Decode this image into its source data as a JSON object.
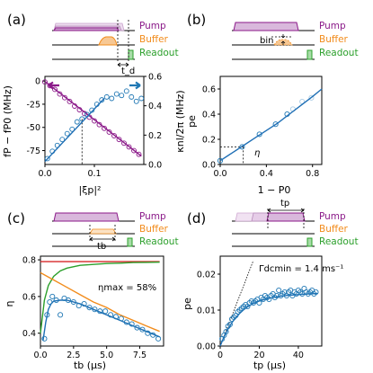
{
  "colors": {
    "pump": "#8b1a89",
    "pump_fill": "#d9b8dc",
    "buffer": "#f28c1c",
    "buffer_fill": "#f7c894",
    "readout": "#2ca02c",
    "readout_fill": "#a8dba8",
    "fit": "#1f6fb5",
    "data": "#1f77b4",
    "pale_data": "#a9cbe4",
    "red": "#d62728"
  },
  "legend": {
    "pump": "Pump",
    "buffer": "Buffer",
    "readout": "Readout"
  },
  "panels": {
    "a": {
      "label": "(a)",
      "seq_note": "t_d",
      "xlabel": "|ξp|²",
      "ylabel_left": "fP − fP0 (MHz)",
      "ylabel_right": "κnl/2π (MHz)"
    },
    "b": {
      "label": "(b)",
      "seq_note": "bin",
      "xlabel": "1 − P0",
      "ylabel": "pe",
      "annotation": "η"
    },
    "c": {
      "label": "(c)",
      "seq_note": "tb",
      "xlabel": "tb (μs)",
      "ylabel": "η",
      "annotation": "ηmax = 58%"
    },
    "d": {
      "label": "(d)",
      "seq_note": "tp",
      "xlabel": "tp (μs)",
      "ylabel": "pe",
      "annotation": "Γdcmin = 1.4 ms⁻¹"
    }
  },
  "chart_data": [
    {
      "panel": "a",
      "type": "scatter",
      "xlim": [
        0,
        0.2
      ],
      "xticks": [
        0.0,
        0.1
      ],
      "ylim_left": [
        -90,
        5
      ],
      "yticks_left": [
        -75,
        -50,
        -25,
        0
      ],
      "ylim_right": [
        0,
        0.6
      ],
      "yticks_right": [
        0.0,
        0.2,
        0.4,
        0.6
      ],
      "marker_x": 0.075,
      "series": [
        {
          "axis": "left",
          "style": "open-circle",
          "color": "pump",
          "x": [
            0.0,
            0.01,
            0.02,
            0.03,
            0.04,
            0.05,
            0.06,
            0.07,
            0.08,
            0.09,
            0.1,
            0.11,
            0.12,
            0.13,
            0.14,
            0.15,
            0.16,
            0.17,
            0.18,
            0.19
          ],
          "y": [
            -1,
            -5,
            -9,
            -14,
            -18,
            -22,
            -27,
            -31,
            -35,
            -39,
            -43,
            -47,
            -51,
            -55,
            -59,
            -63,
            -67,
            -71,
            -75,
            -79
          ]
        },
        {
          "axis": "left",
          "style": "line",
          "color": "pump",
          "x": [
            0.0,
            0.195
          ],
          "y": [
            -0.5,
            -81
          ]
        },
        {
          "axis": "right",
          "style": "open-circle",
          "color": "data",
          "x": [
            0.005,
            0.015,
            0.025,
            0.035,
            0.045,
            0.055,
            0.065,
            0.075,
            0.085,
            0.095,
            0.105,
            0.115,
            0.125,
            0.135,
            0.145,
            0.155,
            0.165,
            0.175,
            0.185,
            0.195
          ],
          "y": [
            0.04,
            0.09,
            0.13,
            0.17,
            0.21,
            0.24,
            0.29,
            0.31,
            0.34,
            0.37,
            0.41,
            0.44,
            0.46,
            0.45,
            0.48,
            0.47,
            0.5,
            0.46,
            0.43,
            0.45
          ]
        },
        {
          "axis": "right",
          "style": "line",
          "color": "fit",
          "x": [
            0.0,
            0.12
          ],
          "y": [
            0.02,
            0.45
          ]
        }
      ]
    },
    {
      "panel": "b",
      "type": "scatter",
      "xlim": [
        0,
        0.88
      ],
      "xticks": [
        0.0,
        0.4,
        0.8
      ],
      "ylim": [
        0,
        0.7
      ],
      "yticks": [
        0.0,
        0.2,
        0.4,
        0.6
      ],
      "marker": {
        "x": 0.2,
        "y": 0.14
      },
      "series": [
        {
          "style": "open-circle",
          "color": "data",
          "x": [
            0.0,
            0.19,
            0.34,
            0.48,
            0.58
          ],
          "y": [
            0.03,
            0.14,
            0.24,
            0.32,
            0.4
          ]
        },
        {
          "style": "open-circle",
          "color": "pale_data",
          "x": [
            0.63,
            0.71,
            0.79
          ],
          "y": [
            0.44,
            0.5,
            0.53
          ]
        },
        {
          "style": "line",
          "color": "fit",
          "x": [
            0.0,
            0.1,
            0.2,
            0.3,
            0.4,
            0.5,
            0.6,
            0.7,
            0.8,
            0.88
          ],
          "y": [
            0.03,
            0.09,
            0.15,
            0.21,
            0.27,
            0.33,
            0.4,
            0.47,
            0.54,
            0.6
          ]
        }
      ]
    },
    {
      "panel": "c",
      "type": "line",
      "xlim": [
        0,
        9.3
      ],
      "xticks": [
        0.0,
        2.5,
        5.0,
        7.5
      ],
      "ylim": [
        0.33,
        0.82
      ],
      "yticks": [
        0.4,
        0.6,
        0.8
      ],
      "series": [
        {
          "style": "line",
          "color": "red",
          "x": [
            0.0,
            9.0
          ],
          "y": [
            0.79,
            0.79
          ]
        },
        {
          "style": "line",
          "color": "readout",
          "x": [
            0.0,
            0.3,
            0.6,
            1.0,
            1.5,
            2.0,
            3.0,
            4.0,
            5.0,
            6.0,
            7.0,
            8.0,
            9.0
          ],
          "y": [
            0.4,
            0.58,
            0.66,
            0.71,
            0.74,
            0.755,
            0.77,
            0.775,
            0.78,
            0.782,
            0.785,
            0.786,
            0.787
          ]
        },
        {
          "style": "line",
          "color": "buffer",
          "x": [
            0.0,
            1.0,
            2.0,
            3.0,
            4.0,
            5.0,
            6.0,
            7.0,
            8.0,
            9.0
          ],
          "y": [
            0.73,
            0.69,
            0.65,
            0.61,
            0.57,
            0.54,
            0.5,
            0.47,
            0.44,
            0.41
          ]
        },
        {
          "style": "line",
          "color": "fit",
          "x": [
            0.2,
            0.4,
            0.6,
            0.8,
            1.0,
            1.5,
            2.0,
            3.0,
            4.0,
            5.0,
            6.0,
            7.0,
            8.0,
            9.0
          ],
          "y": [
            0.36,
            0.46,
            0.53,
            0.56,
            0.575,
            0.58,
            0.58,
            0.56,
            0.53,
            0.5,
            0.47,
            0.44,
            0.41,
            0.38
          ]
        },
        {
          "style": "open-circle",
          "color": "data",
          "x": [
            0.3,
            0.5,
            0.7,
            0.9,
            1.2,
            1.5,
            1.8,
            2.1,
            2.5,
            2.9,
            3.3,
            3.7,
            4.1,
            4.5,
            4.9,
            5.3,
            5.7,
            6.1,
            6.5,
            6.9,
            7.3,
            7.7,
            8.1,
            8.5,
            8.9
          ],
          "y": [
            0.37,
            0.5,
            0.57,
            0.6,
            0.58,
            0.5,
            0.59,
            0.58,
            0.57,
            0.55,
            0.56,
            0.54,
            0.53,
            0.52,
            0.52,
            0.5,
            0.49,
            0.48,
            0.46,
            0.45,
            0.43,
            0.42,
            0.4,
            0.39,
            0.37
          ]
        }
      ]
    },
    {
      "panel": "d",
      "type": "scatter",
      "xlim": [
        0,
        52
      ],
      "xticks": [
        0,
        20,
        40
      ],
      "ylim": [
        0,
        0.025
      ],
      "yticks": [
        0.0,
        0.01,
        0.02
      ],
      "series": [
        {
          "style": "dotted-line",
          "color": "black",
          "x": [
            0.0,
            17.0
          ],
          "y": [
            0.0,
            0.0238
          ]
        },
        {
          "style": "line",
          "color": "fit",
          "x": [
            0,
            2,
            4,
            6,
            8,
            10,
            12,
            14,
            16,
            18,
            20,
            25,
            30,
            35,
            40,
            45,
            50
          ],
          "y": [
            0.0,
            0.0026,
            0.0047,
            0.0065,
            0.0079,
            0.0091,
            0.0101,
            0.0109,
            0.0116,
            0.0121,
            0.0125,
            0.0133,
            0.0138,
            0.0141,
            0.0143,
            0.0145,
            0.0146
          ]
        },
        {
          "style": "open-circle",
          "color": "data",
          "x": [
            1,
            2,
            3,
            4,
            5,
            6,
            7,
            8,
            9,
            10,
            11,
            12,
            13,
            14,
            15,
            16,
            17,
            18,
            19,
            20,
            21,
            22,
            23,
            24,
            25,
            26,
            27,
            28,
            29,
            30,
            31,
            32,
            33,
            34,
            35,
            36,
            37,
            38,
            39,
            40,
            41,
            42,
            43,
            44,
            45,
            46,
            47,
            48,
            49
          ],
          "y": [
            0.002,
            0.003,
            0.004,
            0.0055,
            0.006,
            0.0075,
            0.008,
            0.0085,
            0.0095,
            0.01,
            0.0105,
            0.011,
            0.0115,
            0.011,
            0.012,
            0.0125,
            0.012,
            0.0125,
            0.013,
            0.012,
            0.0135,
            0.013,
            0.014,
            0.0135,
            0.013,
            0.014,
            0.0145,
            0.0135,
            0.014,
            0.0155,
            0.014,
            0.0145,
            0.015,
            0.014,
            0.015,
            0.0155,
            0.014,
            0.015,
            0.0145,
            0.0155,
            0.015,
            0.0145,
            0.016,
            0.015,
            0.0145,
            0.015,
            0.0155,
            0.0145,
            0.015
          ]
        }
      ]
    }
  ]
}
